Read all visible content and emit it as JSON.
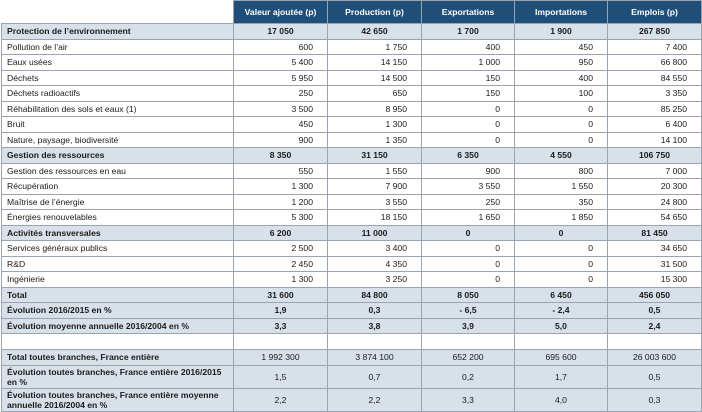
{
  "headers": [
    "",
    "Valeur ajoutée (p)",
    "Production (p)",
    "Exportations",
    "Importations",
    "Emplois (p)"
  ],
  "groups": [
    {
      "title": [
        "Protection de l’environnement",
        "17 050",
        "42 650",
        "1 700",
        "1 900",
        "267 850"
      ],
      "rows": [
        [
          "Pollution de l’air",
          "600",
          "1 750",
          "400",
          "450",
          "7 400"
        ],
        [
          "Eaux usées",
          "5 400",
          "14 150",
          "1 000",
          "950",
          "66 800"
        ],
        [
          "Déchets",
          "5 950",
          "14 500",
          "150",
          "400",
          "84 550"
        ],
        [
          "Déchets radioactifs",
          "250",
          "650",
          "150",
          "100",
          "3 350"
        ],
        [
          "Réhabilitation des sols et eaux (1)",
          "3 500",
          "8 950",
          "0",
          "0",
          "85 250"
        ],
        [
          "Bruit",
          "450",
          "1 300",
          "0",
          "0",
          "6 400"
        ],
        [
          "Nature, paysage, biodiversité",
          "900",
          "1 350",
          "0",
          "0",
          "14 100"
        ]
      ]
    },
    {
      "title": [
        "Gestion des ressources",
        "8 350",
        "31 150",
        "6 350",
        "4 550",
        "106 750"
      ],
      "rows": [
        [
          "Gestion des ressources en eau",
          "550",
          "1 550",
          "900",
          "800",
          "7 000"
        ],
        [
          "Récupération",
          "1 300",
          "7 900",
          "3 550",
          "1 550",
          "20 300"
        ],
        [
          "Maîtrise de l’énergie",
          "1 200",
          "3 550",
          "250",
          "350",
          "24 800"
        ],
        [
          "Énergies renouvelables",
          "5 300",
          "18 150",
          "1 650",
          "1 850",
          "54 650"
        ]
      ]
    },
    {
      "title": [
        "Activités transversales",
        "6 200",
        "11 000",
        "0",
        "0",
        "81 450"
      ],
      "rows": [
        [
          "Services généraux publics",
          "2 500",
          "3 400",
          "0",
          "0",
          "34 650"
        ],
        [
          "R&D",
          "2 450",
          "4 350",
          "0",
          "0",
          "31 500"
        ],
        [
          "Ingénierie",
          "1 300",
          "3 250",
          "0",
          "0",
          "15 300"
        ]
      ]
    }
  ],
  "totals": [
    [
      "Total",
      "31 600",
      "84 800",
      "8 050",
      "6 450",
      "456 050"
    ],
    [
      "Évolution 2016/2015 en %",
      "1,9",
      "0,3",
      "- 6,5",
      "- 2,4",
      "0,5"
    ],
    [
      "Évolution moyenne annuelle 2016/2004 en %",
      "3,3",
      "3,8",
      "3,9",
      "5,0",
      "2,4"
    ]
  ],
  "france": [
    [
      "Total toutes branches, France entière",
      "1 992 300",
      "3 874 100",
      "652 200",
      "695 600",
      "26 003 600"
    ],
    [
      "Évolution toutes branches, France entière 2016/2015 en %",
      "1,5",
      "0,7",
      "0,2",
      "1,7",
      "0,5"
    ],
    [
      "Évolution toutes branches, France entière moyenne annuelle 2016/2004 en %",
      "2,2",
      "2,2",
      "3,3",
      "4,0",
      "0,3"
    ]
  ]
}
